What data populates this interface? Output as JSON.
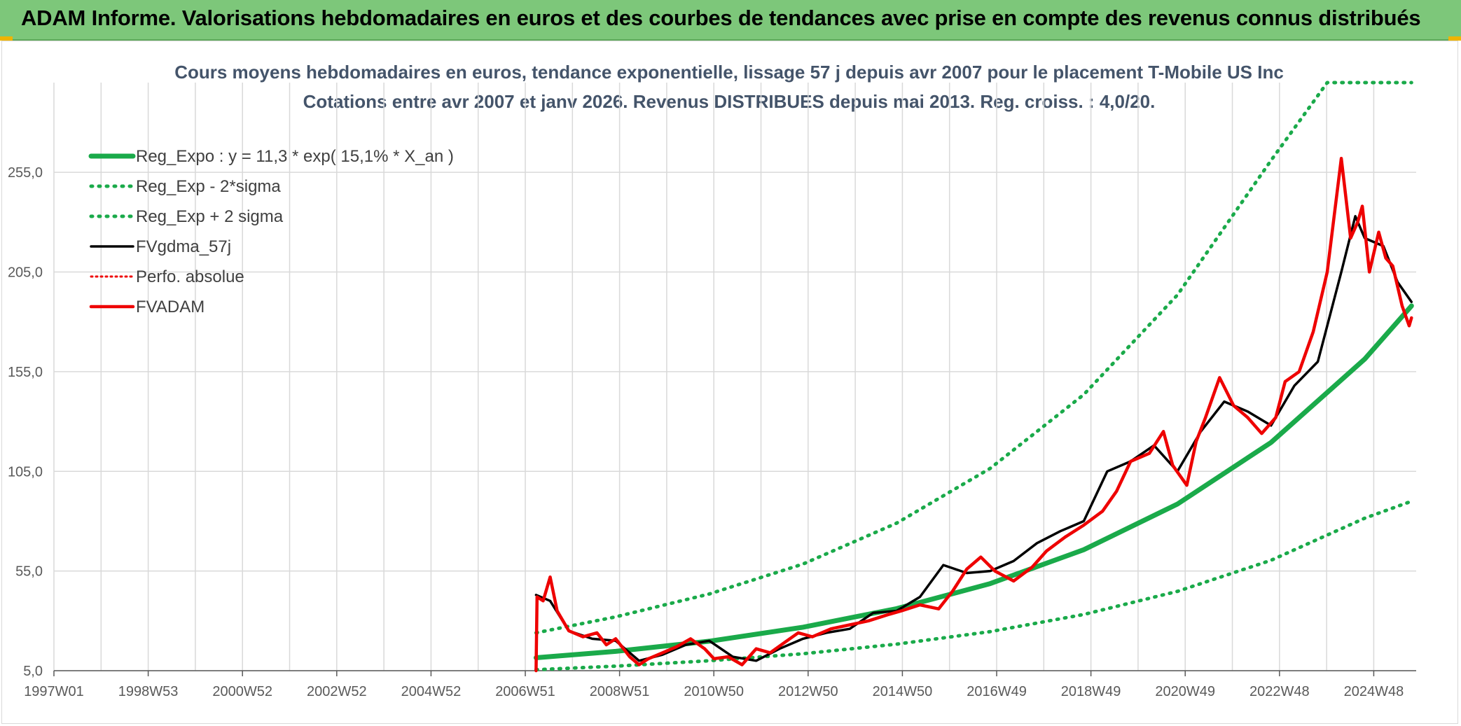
{
  "header": {
    "title": "ADAM Informe. Valorisations hebdomadaires en euros et des courbes de tendances avec prise en compte des revenus connus distribués"
  },
  "colors": {
    "header_bg": "#7dc77a",
    "accent": "#f0b400",
    "trend_green": "#1aaa4a",
    "price_red": "#ee0000",
    "smooth_black": "#000000"
  },
  "chart_data": {
    "type": "line",
    "title": "Cours moyens hebdomadaires en euros, tendance exponentielle, lissage 57 j depuis avr 2007 pour le placement T-Mobile US Inc",
    "subtitle": "Cotations entre avr 2007 et janv 2026. Revenus DISTRIBUES depuis mai 2013. Reg. croiss. : 4,0/20.",
    "x_tick_labels": [
      "1997W01",
      "1998W53",
      "2000W52",
      "2002W52",
      "2004W52",
      "2006W51",
      "2008W51",
      "2010W50",
      "2012W50",
      "2014W50",
      "2016W49",
      "2018W49",
      "2020W49",
      "2022W48",
      "2024W48"
    ],
    "y_tick_labels": [
      "5,0",
      "55,0",
      "105,0",
      "155,0",
      "205,0",
      "255,0"
    ],
    "xlim": [
      1997.0,
      2026.1
    ],
    "ylim": [
      5,
      300
    ],
    "grid": true,
    "legend_position": "top-left",
    "series": [
      {
        "name": "Reg_Expo : y = 11,3 * exp( 15,1% *  X_an )",
        "style": "solid-green",
        "x": [
          2007.3,
          2009,
          2011,
          2013,
          2015,
          2017,
          2019,
          2021,
          2023,
          2025,
          2026.0
        ],
        "y": [
          11.5,
          14.7,
          19.8,
          26.8,
          36.1,
          48.7,
          65.7,
          88.6,
          119.5,
          161.3,
          188
        ]
      },
      {
        "name": "Reg_Exp - 2*sigma",
        "style": "dotted-green",
        "x": [
          2007.3,
          2009,
          2011,
          2013,
          2015,
          2017,
          2019,
          2021,
          2023,
          2025,
          2026.0
        ],
        "y": [
          5.5,
          7.3,
          10.0,
          13.5,
          18.3,
          24.6,
          33.2,
          44.8,
          60.4,
          81.5,
          90
        ]
      },
      {
        "name": "Reg_Exp + 2 sigma",
        "style": "dotted-green",
        "x": [
          2007.3,
          2009,
          2011,
          2013,
          2015,
          2017,
          2019,
          2021,
          2023,
          2024.2,
          2026.0
        ],
        "y": [
          24.0,
          32.0,
          43.5,
          58.5,
          79.0,
          106.5,
          143.5,
          193.5,
          261.0,
          300,
          300
        ]
      },
      {
        "name": "FVgdma_57j",
        "style": "solid-black",
        "x": [
          2007.3,
          2007.6,
          2008.0,
          2008.5,
          2009.0,
          2009.5,
          2010.0,
          2010.5,
          2011.0,
          2011.5,
          2012.0,
          2012.5,
          2013.0,
          2013.5,
          2014.0,
          2014.5,
          2015.0,
          2015.5,
          2016.0,
          2016.5,
          2017.0,
          2017.5,
          2018.0,
          2018.5,
          2019.0,
          2019.5,
          2020.0,
          2020.5,
          2021.0,
          2021.5,
          2022.0,
          2022.5,
          2023.0,
          2023.5,
          2024.0,
          2024.5,
          2024.8,
          2025.0,
          2025.4,
          2025.7,
          2026.0
        ],
        "y": [
          43,
          40,
          25,
          21,
          20,
          10,
          13,
          18,
          20,
          12,
          10,
          16,
          21,
          24,
          26,
          34,
          35,
          42,
          58,
          54,
          55,
          60,
          69,
          75,
          80,
          105,
          110,
          118,
          105,
          125,
          140,
          135,
          128,
          148,
          160,
          205,
          233,
          222,
          218,
          200,
          190
        ]
      },
      {
        "name": "Perfo. absolue",
        "style": "dotted-red",
        "x": [],
        "y": []
      },
      {
        "name": "FVADAM",
        "style": "solid-red",
        "x": [
          2007.3,
          2007.32,
          2007.45,
          2007.6,
          2007.75,
          2008.0,
          2008.3,
          2008.6,
          2008.8,
          2009.0,
          2009.3,
          2009.5,
          2009.7,
          2010.0,
          2010.3,
          2010.6,
          2010.9,
          2011.1,
          2011.4,
          2011.7,
          2012.0,
          2012.3,
          2012.6,
          2012.9,
          2013.2,
          2013.6,
          2014.0,
          2014.4,
          2014.8,
          2015.1,
          2015.5,
          2015.9,
          2016.2,
          2016.5,
          2016.8,
          2017.1,
          2017.5,
          2017.9,
          2018.2,
          2018.6,
          2019.0,
          2019.4,
          2019.7,
          2020.0,
          2020.4,
          2020.7,
          2020.9,
          2021.2,
          2021.4,
          2021.6,
          2021.9,
          2022.2,
          2022.5,
          2022.8,
          2023.1,
          2023.3,
          2023.6,
          2023.9,
          2024.2,
          2024.5,
          2024.7,
          2024.85,
          2024.95,
          2025.1,
          2025.3,
          2025.45,
          2025.6,
          2025.8,
          2025.95,
          2026.0
        ],
        "y": [
          5,
          42,
          40,
          52,
          35,
          25,
          22,
          24,
          18,
          21,
          12,
          8,
          11,
          14,
          17,
          21,
          16,
          11,
          12,
          8,
          16,
          14,
          19,
          24,
          22,
          26,
          28,
          30,
          33,
          35,
          38,
          36,
          45,
          56,
          62,
          55,
          50,
          57,
          65,
          72,
          78,
          85,
          95,
          110,
          114,
          125,
          108,
          98,
          120,
          132,
          152,
          138,
          132,
          124,
          132,
          150,
          155,
          175,
          205,
          262,
          222,
          230,
          238,
          205,
          225,
          212,
          208,
          188,
          178,
          182
        ]
      }
    ]
  }
}
